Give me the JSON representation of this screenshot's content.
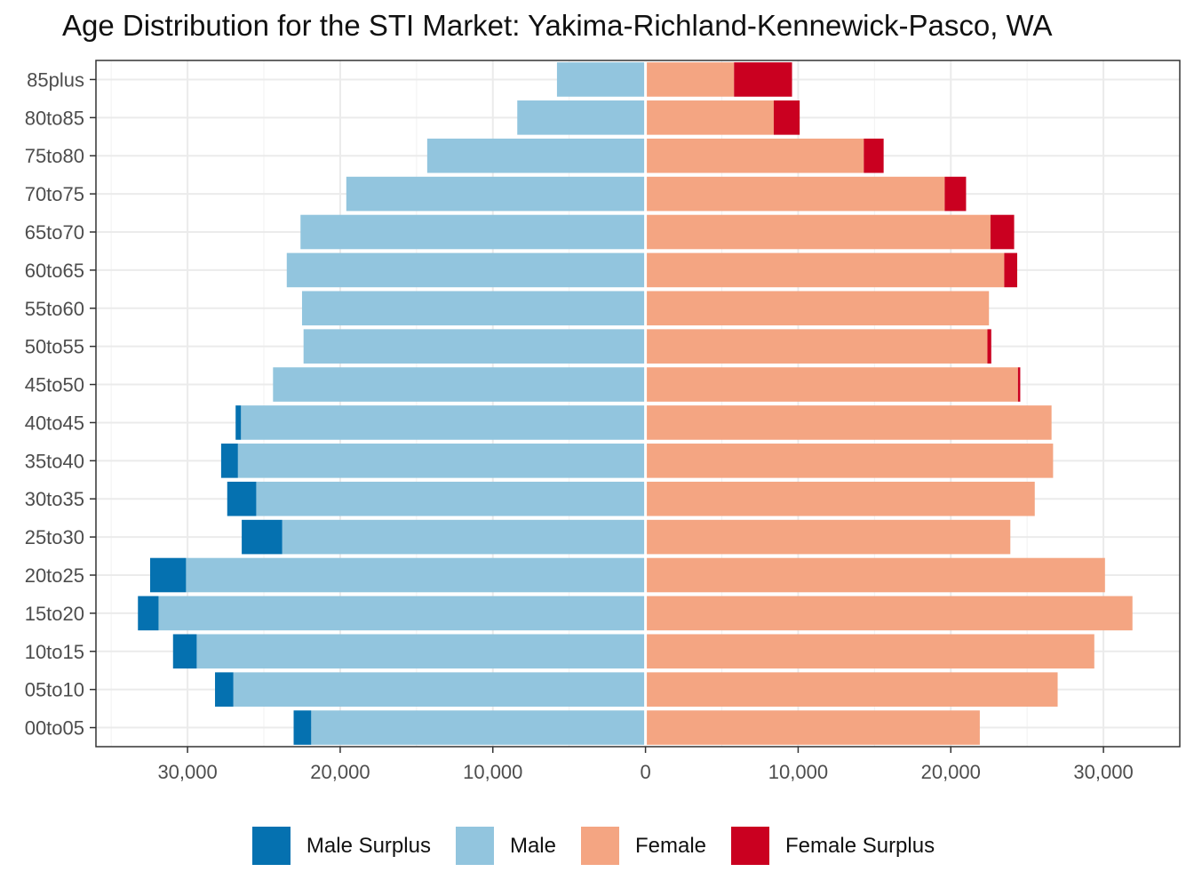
{
  "chart_data": {
    "type": "bar",
    "orientation": "horizontal",
    "title": "Age Distribution for the STI Market: Yakima-Richland-Kennewick-Pasco, WA",
    "xlabel": "",
    "ylabel": "",
    "categories": [
      "00to05",
      "05to10",
      "10to15",
      "15to20",
      "20to25",
      "25to30",
      "30to35",
      "35to40",
      "40to45",
      "45to50",
      "50to55",
      "55to60",
      "60to65",
      "65to70",
      "70to75",
      "75to80",
      "80to85",
      "85plus"
    ],
    "xlim": [
      -36000,
      35000
    ],
    "x_ticks": [
      -30000,
      -20000,
      -10000,
      0,
      10000,
      20000,
      30000
    ],
    "x_tick_labels": [
      "30,000",
      "20,000",
      "10,000",
      "0",
      "10,000",
      "20,000",
      "30,000"
    ],
    "grid": true,
    "legend_position": "bottom",
    "series": [
      {
        "name": "Male Surplus",
        "color": "#0571b0",
        "values": [
          1150,
          1200,
          1550,
          1350,
          2350,
          2650,
          1900,
          1100,
          350,
          0,
          0,
          0,
          0,
          0,
          0,
          0,
          0,
          0
        ]
      },
      {
        "name": "Male",
        "color": "#92c5de",
        "values": [
          21900,
          27000,
          29400,
          31900,
          30100,
          23800,
          25500,
          26700,
          26500,
          24400,
          22400,
          22500,
          23500,
          22600,
          19600,
          14300,
          8400,
          5800
        ]
      },
      {
        "name": "Female",
        "color": "#f4a582",
        "values": [
          21900,
          27000,
          29400,
          31900,
          30100,
          23900,
          25500,
          26700,
          26600,
          24400,
          22400,
          22500,
          23500,
          22600,
          19600,
          14300,
          8400,
          5800
        ]
      },
      {
        "name": "Female Surplus",
        "color": "#ca0020",
        "values": [
          0,
          0,
          0,
          0,
          0,
          0,
          0,
          0,
          0,
          150,
          250,
          0,
          850,
          1550,
          1400,
          1300,
          1700,
          3800
        ]
      }
    ]
  }
}
